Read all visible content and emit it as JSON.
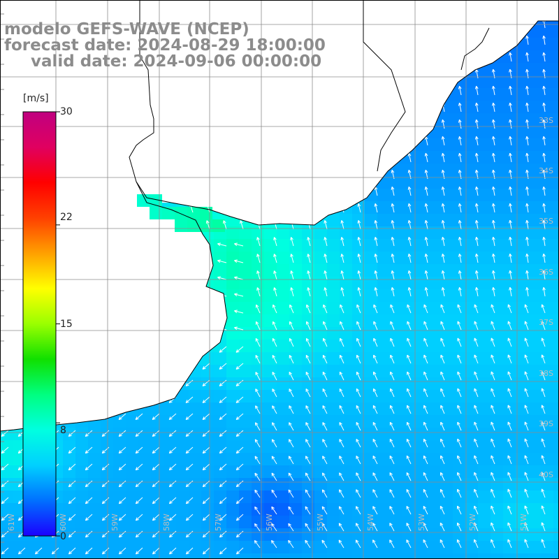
{
  "title": {
    "model": "modelo GEFS-WAVE (NCEP)",
    "forecast_date": "forecast date: 2024-08-29 18:00:00",
    "valid_date": "valid date: 2024-09-06 00:00:00"
  },
  "colorbar": {
    "unit": "[m/s]",
    "ticks": [
      {
        "label": "30",
        "value": 30
      },
      {
        "label": "22",
        "value": 22
      },
      {
        "label": "15",
        "value": 15
      },
      {
        "label": "8",
        "value": 8
      },
      {
        "label": "0",
        "value": 0
      }
    ],
    "colors": [
      "#1a00ff",
      "#0070ff",
      "#00d0ff",
      "#00ffe0",
      "#00ff80",
      "#10e000",
      "#9aff00",
      "#ffff00",
      "#ffa000",
      "#ff4000",
      "#ff0000",
      "#e00060",
      "#c00080"
    ]
  },
  "map": {
    "parameter": "wind speed and direction",
    "land_color": "#ffffff",
    "coastline_color": "#000000",
    "grid_color": "#8c8c8c",
    "lat_labels": [
      "33S",
      "34S",
      "35S",
      "36S",
      "37S",
      "38S",
      "39S",
      "40S"
    ],
    "lon_labels": [
      "61W",
      "60W",
      "59W",
      "58W",
      "57W",
      "56W",
      "55W",
      "54W",
      "53W",
      "52W",
      "51W"
    ]
  }
}
